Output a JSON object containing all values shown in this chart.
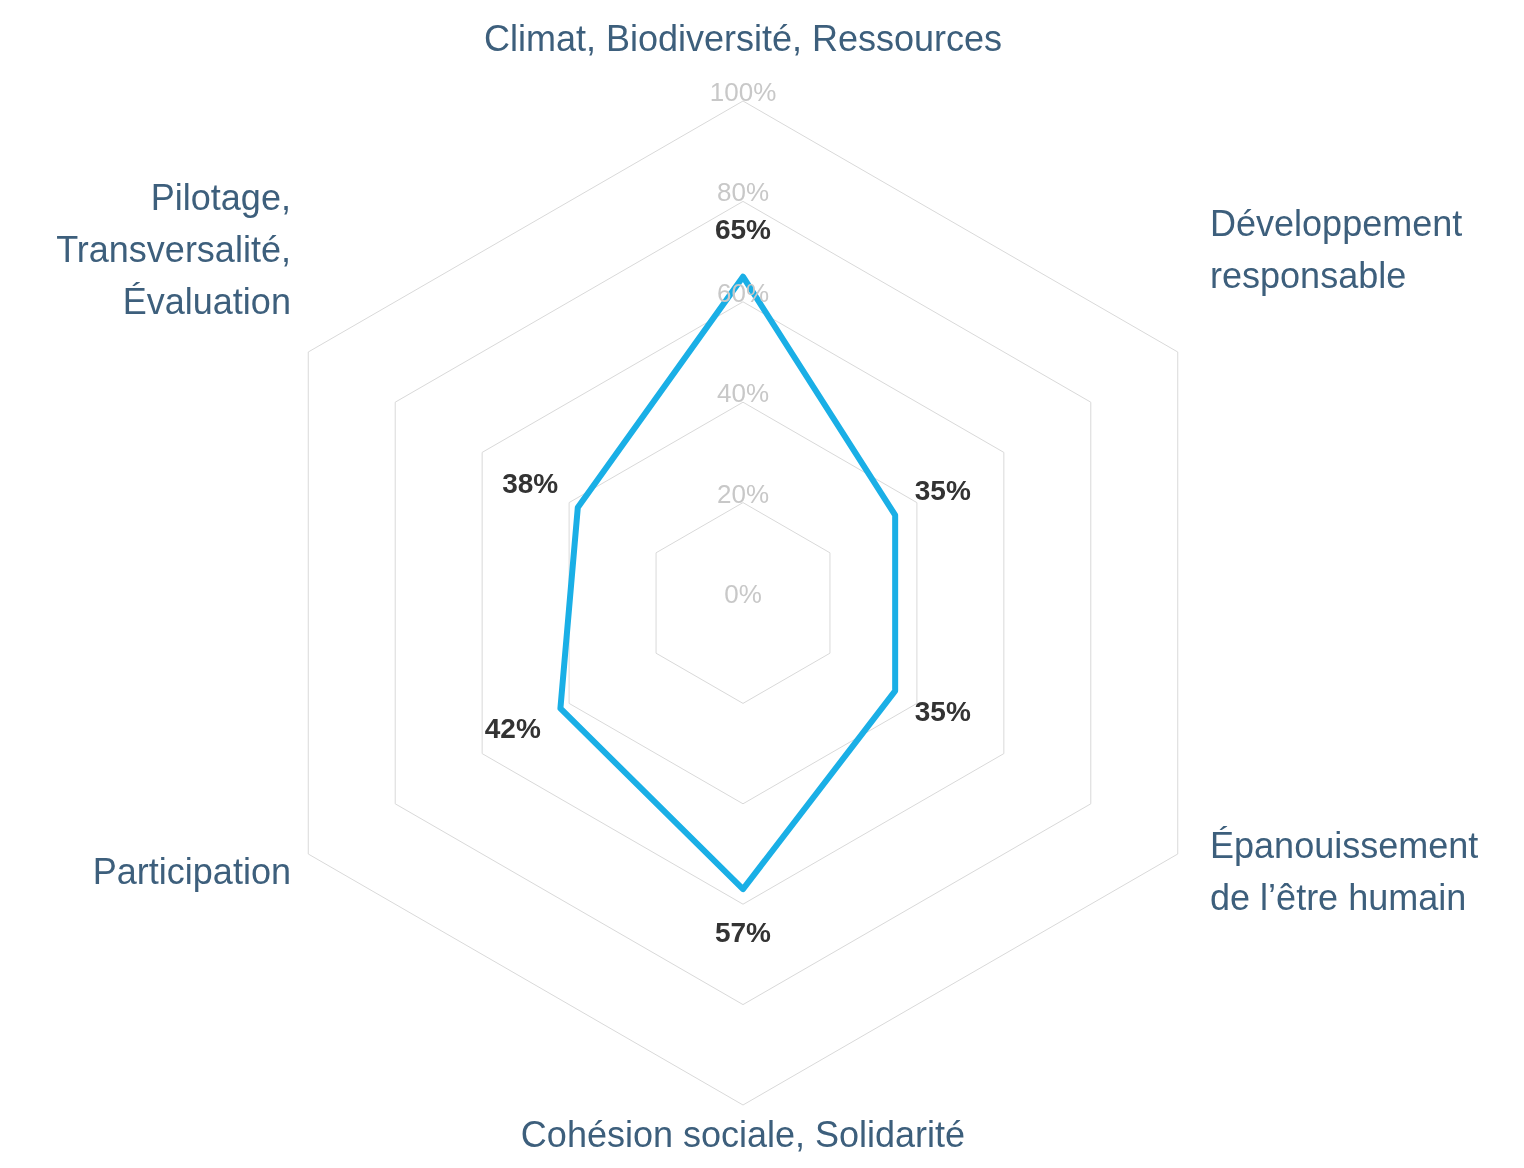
{
  "chart_data": {
    "type": "radar",
    "categories": [
      "Climat, Biodiversité, Ressources",
      "Développement\nresponsable",
      "Épanouissement\nde l’être humain",
      "Cohésion sociale, Solidarité",
      "Participation",
      "Pilotage,\nTransversalité,\nÉvaluation"
    ],
    "series": [
      {
        "color": "#1aafe6",
        "values": [
          65,
          35,
          35,
          57,
          42,
          38
        ]
      }
    ],
    "ylim": [
      0,
      100
    ],
    "yticks": [
      {
        "value": 0,
        "label": "0%"
      },
      {
        "value": 20,
        "label": "20%"
      },
      {
        "value": 40,
        "label": "40%"
      },
      {
        "value": 60,
        "label": "60%"
      },
      {
        "value": 80,
        "label": "80%"
      },
      {
        "value": 100,
        "label": "100%"
      }
    ],
    "value_labels": [
      "65%",
      "35%",
      "35%",
      "57%",
      "42%",
      "38%"
    ],
    "grid": true,
    "marker": "none"
  }
}
